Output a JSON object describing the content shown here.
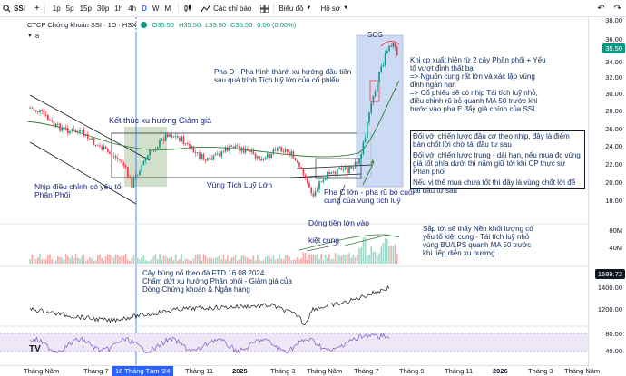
{
  "toolbar": {
    "symbol": "SSI",
    "timeframes": [
      "1p",
      "5p",
      "15p",
      "30p",
      "1h",
      "4h",
      "D",
      "W",
      "M"
    ],
    "active_timeframe": "D",
    "indicators_label": "Các chỉ báo",
    "chart_label": "Biểu đồ",
    "layout_label": "Hồ sơ"
  },
  "legend": {
    "title": "CTCP Chứng khoán SSI · 1D · HSX",
    "open": "O35.50",
    "high": "H35.50",
    "low": "L35.50",
    "close": "C35.50",
    "change": "0.00 (0.00%)",
    "sub_count": "8"
  },
  "annotations": {
    "sos": "SOS",
    "phase_d": "Pha D - Pha hình thành xu hướng đầu tiên sau quá trình Tích luỹ lớn của cổ phiếu",
    "right_1": "Khi cp xuất hiện từ 2 cây Phân phối + Yếu tố vượt đỉnh thất bại",
    "right_2": "=> Nguồn cung rất lớn và xác lập vùng đỉnh ngắn hạn",
    "right_3": "=> Cổ phiếu sẽ có nhịp Tái tích luỹ nhỏ, điều chỉnh rũ bỏ quanh MA 50 trước khi bước vào pha E đẩy giá chính của SSI",
    "right_4": "Đối với chiến lược đầu cơ theo nhịp, đây là điểm bán chốt lời chờ tái đầu tư sau",
    "right_5": "Đối với chiến lược trung - dài hạn, nếu mua đc vùng giá tốt phía dưới thì nắm giữ tới khi CP thực sự Phân phối",
    "right_6": "Nếu vị thế mua chưa tốt thì đây là vùng chốt lời để tái đầu tư sau",
    "ket_thuc": "Kết thúc xu hướng Giảm giá",
    "nhip_dieu_chinh": "Nhịp điều chỉnh có yếu tố Phân Phối",
    "vung_tich_luy": "Vùng Tích Luỹ Lớn",
    "pha_c": "Pha C lớn - pha rũ bỏ cuối cùng của vùng tích luỹ",
    "dong_tien": "Dòng tiền lớn vào",
    "kiet_cung": "kiệt cung",
    "nen_khoi_luong": "Sắp tới sẽ thấy Nền khối lượng có yếu tố kiệt cung - Tái tích luỹ nhỏ vùng BU/LPS quanh MA 50 trước khi tiếp diễn xu hướng",
    "cay_bung_no": "Cây bùng nổ theo đà FTD 16.08.2024",
    "cham_dut": "Chấm dứt xu hướng Phân phối - Giảm giá của Dòng Chứng khoán & Ngân hàng"
  },
  "price_axis": {
    "labels": [
      "38.00",
      "36.00",
      "34.00",
      "32.00",
      "30.00",
      "28.00",
      "26.00",
      "24.00",
      "22.00",
      "20.00",
      "18.00"
    ],
    "current": "35.50",
    "current_bg": "#089981",
    "volume_label": "80M",
    "volume_label2": "40M",
    "index_current": "1589.72",
    "index_labels": [
      "1400.00",
      "1200.00"
    ],
    "osc_labels": [
      "80.00",
      "40.00"
    ]
  },
  "time_axis": {
    "labels": [
      "Tháng Năm",
      "Tháng 7",
      "Tháng 11",
      "2025",
      "Tháng 3",
      "Tháng Năm",
      "Tháng 7",
      "Tháng 9",
      "Tháng 11",
      "2026",
      "Tháng 3",
      "Tháng Năm"
    ],
    "highlight": "16 Tháng Tám '24"
  },
  "logo": "TV",
  "colors": {
    "accent": "#2962ff",
    "up": "#089981",
    "down": "#f23645"
  }
}
